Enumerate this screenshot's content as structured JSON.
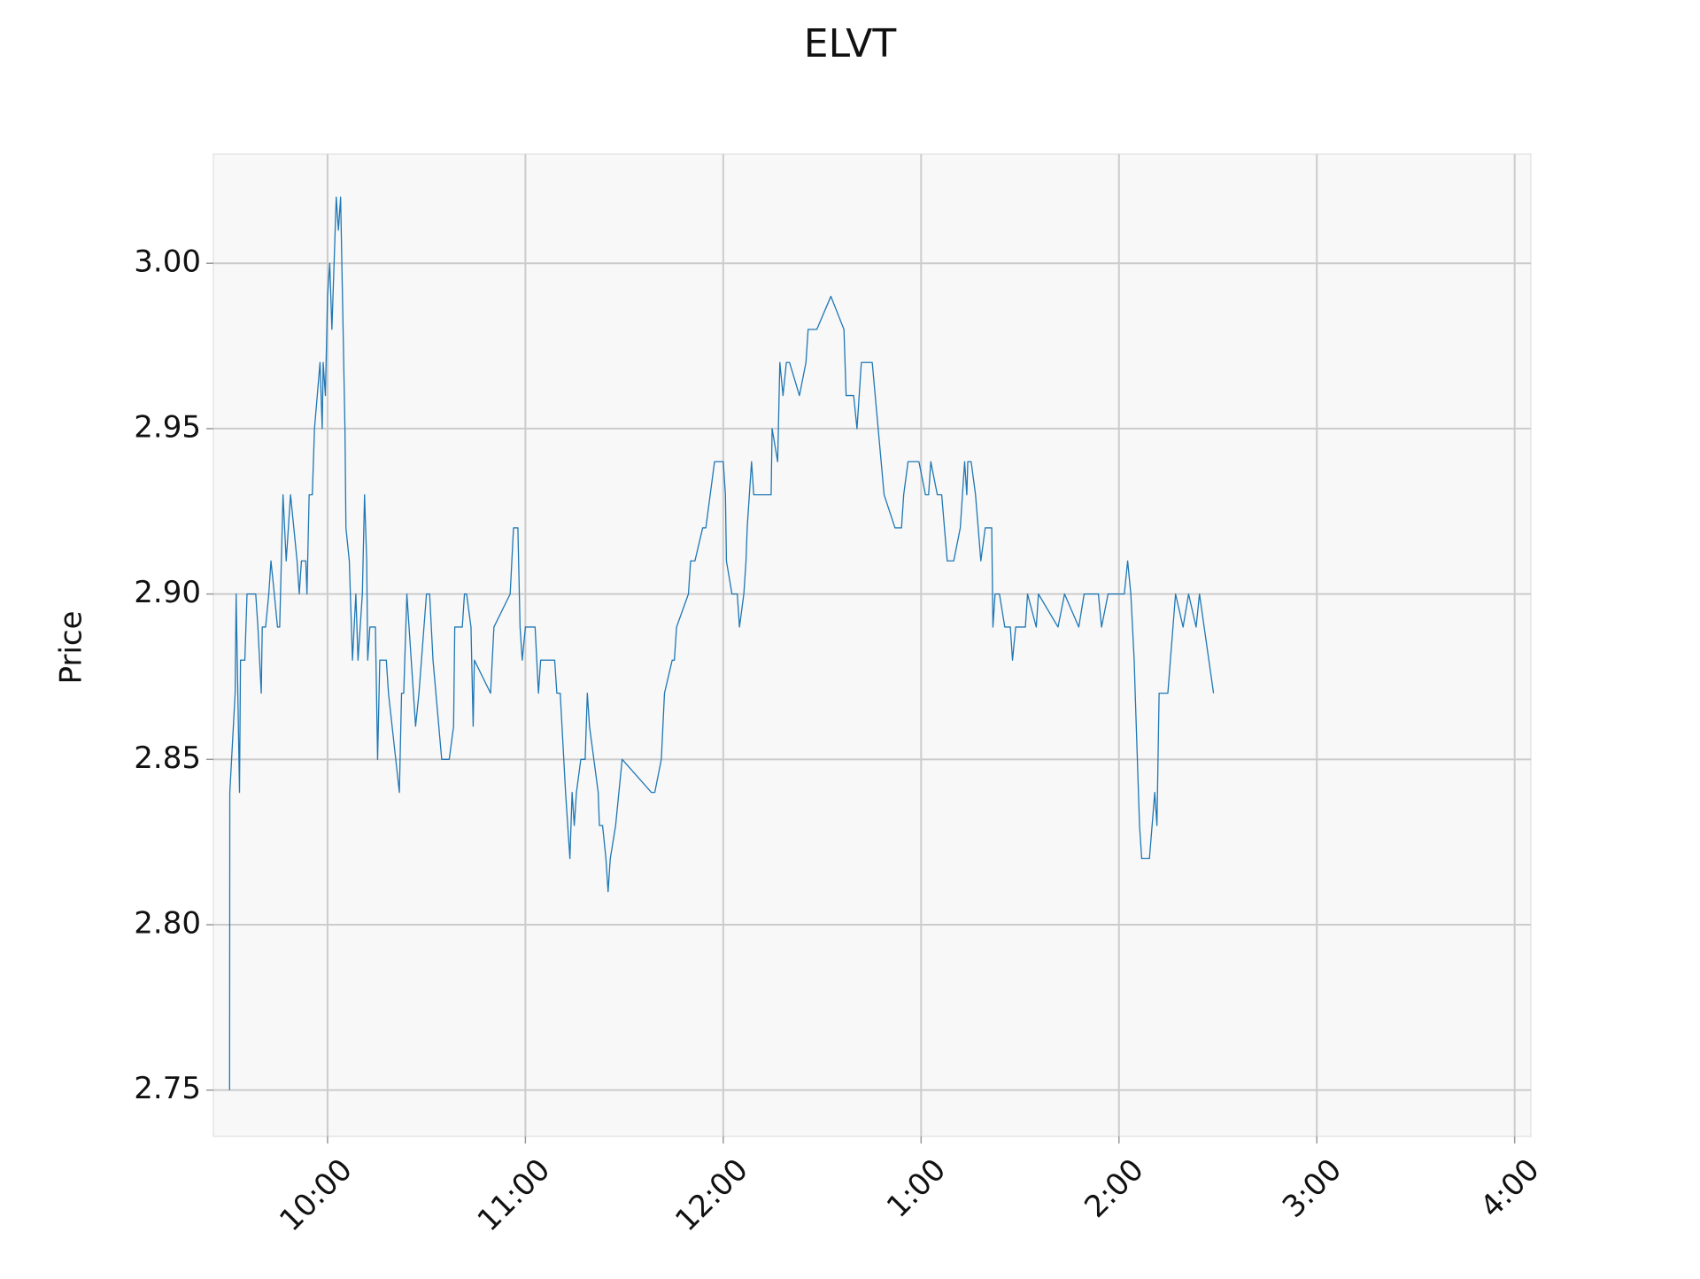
{
  "chart_data": {
    "type": "line",
    "title": "ELVT",
    "y_label": "Price",
    "x": [
      9.505,
      9.506,
      9.533,
      9.538,
      9.555,
      9.56,
      9.582,
      9.593,
      9.637,
      9.648,
      9.665,
      9.67,
      9.687,
      9.703,
      9.714,
      9.731,
      9.747,
      9.758,
      9.775,
      9.791,
      9.813,
      9.846,
      9.857,
      9.868,
      9.89,
      9.896,
      9.907,
      9.923,
      9.934,
      9.962,
      9.973,
      9.978,
      9.989,
      10.0,
      10.011,
      10.022,
      10.033,
      10.044,
      10.055,
      10.066,
      10.088,
      10.093,
      10.11,
      10.126,
      10.143,
      10.154,
      10.176,
      10.187,
      10.198,
      10.203,
      10.214,
      10.242,
      10.253,
      10.264,
      10.297,
      10.308,
      10.363,
      10.374,
      10.385,
      10.401,
      10.445,
      10.462,
      10.5,
      10.516,
      10.533,
      10.577,
      10.615,
      10.637,
      10.643,
      10.681,
      10.692,
      10.703,
      10.725,
      10.736,
      10.742,
      10.824,
      10.841,
      10.923,
      10.94,
      10.962,
      10.973,
      10.984,
      11.0,
      11.049,
      11.066,
      11.077,
      11.148,
      11.159,
      11.176,
      11.203,
      11.225,
      11.236,
      11.247,
      11.258,
      11.28,
      11.302,
      11.313,
      11.324,
      11.368,
      11.374,
      11.39,
      11.407,
      11.418,
      11.429,
      11.456,
      11.489,
      11.637,
      11.654,
      11.687,
      11.703,
      11.742,
      11.753,
      11.764,
      11.824,
      11.835,
      11.857,
      11.896,
      11.912,
      11.956,
      12.0,
      12.011,
      12.016,
      12.044,
      12.071,
      12.082,
      12.104,
      12.115,
      12.121,
      12.132,
      12.143,
      12.154,
      12.242,
      12.247,
      12.275,
      12.286,
      12.302,
      12.319,
      12.335,
      12.385,
      12.418,
      12.429,
      12.473,
      12.544,
      12.61,
      12.621,
      12.659,
      12.676,
      12.698,
      12.753,
      12.813,
      12.868,
      12.901,
      12.912,
      12.934,
      12.989,
      13.022,
      13.038,
      13.049,
      13.082,
      13.104,
      13.132,
      13.165,
      13.198,
      13.22,
      13.231,
      13.236,
      13.253,
      13.275,
      13.302,
      13.324,
      13.357,
      13.363,
      13.374,
      13.396,
      13.423,
      13.451,
      13.462,
      13.478,
      13.527,
      13.538,
      13.582,
      13.593,
      13.692,
      13.725,
      13.797,
      13.824,
      13.896,
      13.912,
      13.945,
      14.027,
      14.044,
      14.06,
      14.077,
      14.082,
      14.104,
      14.115,
      14.154,
      14.181,
      14.192,
      14.203,
      14.247,
      14.286,
      14.324,
      14.352,
      14.39,
      14.407,
      14.478
    ],
    "series": [
      {
        "name": "ELVT",
        "color": "#1f77b4",
        "values": [
          2.75,
          2.84,
          2.87,
          2.9,
          2.84,
          2.88,
          2.88,
          2.9,
          2.9,
          2.89,
          2.87,
          2.89,
          2.89,
          2.9,
          2.91,
          2.9,
          2.89,
          2.89,
          2.93,
          2.91,
          2.93,
          2.91,
          2.9,
          2.91,
          2.91,
          2.9,
          2.93,
          2.93,
          2.95,
          2.97,
          2.95,
          2.97,
          2.96,
          2.99,
          3.0,
          2.98,
          3.0,
          3.02,
          3.01,
          3.02,
          2.95,
          2.92,
          2.91,
          2.88,
          2.9,
          2.88,
          2.9,
          2.93,
          2.91,
          2.88,
          2.89,
          2.89,
          2.85,
          2.88,
          2.88,
          2.87,
          2.84,
          2.87,
          2.87,
          2.9,
          2.86,
          2.87,
          2.9,
          2.9,
          2.88,
          2.85,
          2.85,
          2.86,
          2.89,
          2.89,
          2.9,
          2.9,
          2.89,
          2.86,
          2.88,
          2.87,
          2.89,
          2.9,
          2.92,
          2.92,
          2.89,
          2.88,
          2.89,
          2.89,
          2.87,
          2.88,
          2.88,
          2.87,
          2.87,
          2.84,
          2.82,
          2.84,
          2.83,
          2.84,
          2.85,
          2.85,
          2.87,
          2.86,
          2.84,
          2.83,
          2.83,
          2.82,
          2.81,
          2.82,
          2.83,
          2.85,
          2.84,
          2.84,
          2.85,
          2.87,
          2.88,
          2.88,
          2.89,
          2.9,
          2.91,
          2.91,
          2.92,
          2.92,
          2.94,
          2.94,
          2.93,
          2.91,
          2.9,
          2.9,
          2.89,
          2.9,
          2.91,
          2.92,
          2.93,
          2.94,
          2.93,
          2.93,
          2.95,
          2.94,
          2.97,
          2.96,
          2.97,
          2.97,
          2.96,
          2.97,
          2.98,
          2.98,
          2.99,
          2.98,
          2.96,
          2.96,
          2.95,
          2.97,
          2.97,
          2.93,
          2.92,
          2.92,
          2.93,
          2.94,
          2.94,
          2.93,
          2.93,
          2.94,
          2.93,
          2.93,
          2.91,
          2.91,
          2.92,
          2.94,
          2.93,
          2.94,
          2.94,
          2.93,
          2.91,
          2.92,
          2.92,
          2.89,
          2.9,
          2.9,
          2.89,
          2.89,
          2.88,
          2.89,
          2.89,
          2.9,
          2.89,
          2.9,
          2.89,
          2.9,
          2.89,
          2.9,
          2.9,
          2.89,
          2.9,
          2.9,
          2.91,
          2.9,
          2.88,
          2.87,
          2.83,
          2.82,
          2.82,
          2.84,
          2.83,
          2.87,
          2.87,
          2.9,
          2.89,
          2.9,
          2.89,
          2.9,
          2.87
        ]
      }
    ],
    "xlim": [
      9.423,
      16.082
    ],
    "ylim": [
      2.736,
      3.033
    ],
    "xticks": [
      {
        "value": 10,
        "label": "10:00"
      },
      {
        "value": 11,
        "label": "11:00"
      },
      {
        "value": 12,
        "label": "12:00"
      },
      {
        "value": 13,
        "label": "1:00"
      },
      {
        "value": 14,
        "label": "2:00"
      },
      {
        "value": 15,
        "label": "3:00"
      },
      {
        "value": 16,
        "label": "4:00"
      }
    ],
    "yticks": [
      {
        "value": 2.75,
        "label": "2.75"
      },
      {
        "value": 2.8,
        "label": "2.80"
      },
      {
        "value": 2.85,
        "label": "2.85"
      },
      {
        "value": 2.9,
        "label": "2.90"
      },
      {
        "value": 2.95,
        "label": "2.95"
      },
      {
        "value": 3.0,
        "label": "3.00"
      }
    ],
    "grid": true
  }
}
